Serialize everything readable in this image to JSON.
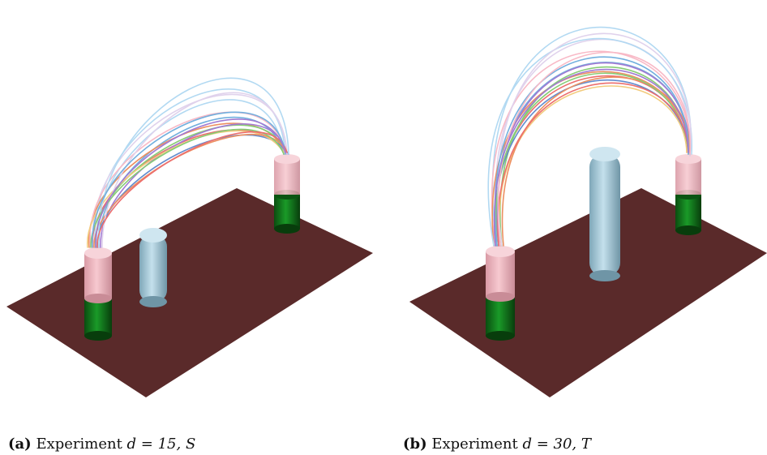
{
  "figure": {
    "panels": [
      {
        "id": "a",
        "label": "(a)",
        "caption_prefix": "Experiment",
        "caption_eq": "d = 15,",
        "caption_sym": "S",
        "obstacle_height": "short"
      },
      {
        "id": "b",
        "label": "(b)",
        "caption_prefix": "Experiment",
        "caption_eq": "d = 30,",
        "caption_sym": "T",
        "obstacle_height": "tall"
      }
    ],
    "colors": {
      "ground": "#5a2a2a",
      "peg_top": "#f2b6c0",
      "peg_bottom": "#0f7a1a",
      "obstacle": "#a8ccdc",
      "trajectories": [
        "#4f9cd6",
        "#9fd0ef",
        "#e8743a",
        "#e84a4a",
        "#6ac054",
        "#8a5ac8",
        "#f7a8b8",
        "#d9c8e8",
        "#3b6fc2",
        "#f0c060"
      ]
    }
  }
}
